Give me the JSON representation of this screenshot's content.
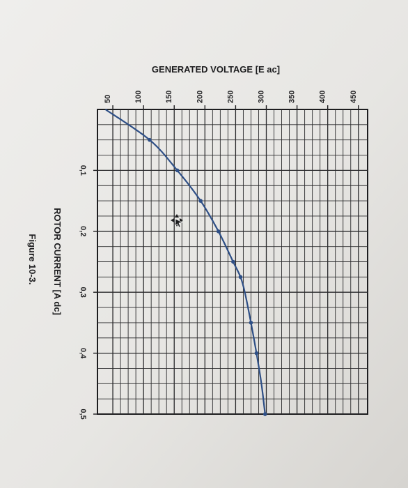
{
  "figure_caption": "Figure 10-3.",
  "chart_data": {
    "type": "line",
    "orientation": "rotated-90-clockwise",
    "xlabel": "ROTOR CURRENT [A dc]",
    "ylabel": "GENERATED VOLTAGE [E ac]",
    "x_ticks": [
      "0,1",
      "0,2",
      "0,3",
      "0,4",
      "0,5"
    ],
    "y_ticks": [
      "50",
      "100",
      "150",
      "200",
      "250",
      "300",
      "350",
      "400",
      "450"
    ],
    "xlim": [
      0,
      0.5
    ],
    "ylim": [
      25,
      465
    ],
    "grid": true,
    "series": [
      {
        "color": "#2e4f86",
        "x": [
          0.0,
          0.05,
          0.1,
          0.15,
          0.2,
          0.25,
          0.275,
          0.3,
          0.35,
          0.4,
          0.45,
          0.5
        ],
        "y": [
          38,
          110,
          155,
          193,
          222,
          246,
          258,
          265,
          275,
          284,
          292,
          298
        ]
      }
    ],
    "markers_x": [
      0.05,
      0.1,
      0.15,
      0.2,
      0.25,
      0.275,
      0.35,
      0.4,
      0.5
    ]
  }
}
